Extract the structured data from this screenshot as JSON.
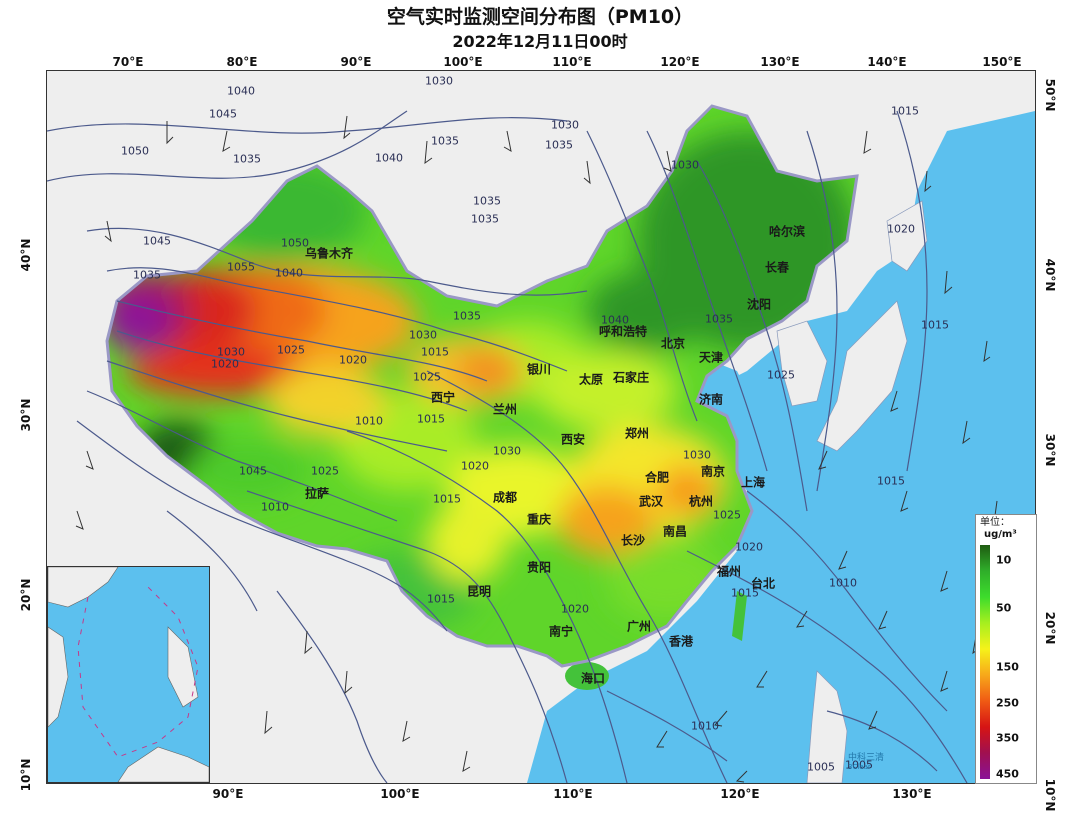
{
  "title": "空气实时监测空间分布图（PM10）",
  "subtitle": "2022年12月11日00时",
  "longitude_labels_top": [
    "70°E",
    "80°E",
    "90°E",
    "100°E",
    "110°E",
    "120°E",
    "130°E",
    "140°E",
    "150°E"
  ],
  "longitude_labels_bottom": [
    "90°E",
    "100°E",
    "110°E",
    "120°E",
    "130°E"
  ],
  "latitude_labels_left": [
    "40°N",
    "30°N",
    "20°N",
    "10°N"
  ],
  "latitude_labels_right": [
    "50°N",
    "40°N",
    "30°N",
    "20°N",
    "10°N"
  ],
  "cities": [
    {
      "name": "乌鲁木齐"
    },
    {
      "name": "哈尔滨"
    },
    {
      "name": "长春"
    },
    {
      "name": "沈阳"
    },
    {
      "name": "呼和浩特"
    },
    {
      "name": "北京"
    },
    {
      "name": "天津"
    },
    {
      "name": "银川"
    },
    {
      "name": "太原"
    },
    {
      "name": "石家庄"
    },
    {
      "name": "西宁"
    },
    {
      "name": "兰州"
    },
    {
      "name": "济南"
    },
    {
      "name": "西安"
    },
    {
      "name": "郑州"
    },
    {
      "name": "合肥"
    },
    {
      "name": "南京"
    },
    {
      "name": "上海"
    },
    {
      "name": "拉萨"
    },
    {
      "name": "成都"
    },
    {
      "name": "武汉"
    },
    {
      "name": "杭州"
    },
    {
      "name": "重庆"
    },
    {
      "name": "南昌"
    },
    {
      "name": "长沙"
    },
    {
      "name": "贵阳"
    },
    {
      "name": "福州"
    },
    {
      "name": "台北"
    },
    {
      "name": "昆明"
    },
    {
      "name": "南宁"
    },
    {
      "name": "广州"
    },
    {
      "name": "香港"
    },
    {
      "name": "海口"
    }
  ],
  "isobar_labels": [
    "1040",
    "1045",
    "1050",
    "1035",
    "1030",
    "1040",
    "1035",
    "1035",
    "1030",
    "1035",
    "1045",
    "1050",
    "1040",
    "1055",
    "1035",
    "1030",
    "1025",
    "1020",
    "1015",
    "1010",
    "1015",
    "1020",
    "1025",
    "1030",
    "1035",
    "1040",
    "1045",
    "1030",
    "1025",
    "1020",
    "1015",
    "1010",
    "1005",
    "1005",
    "1010",
    "1015",
    "1020",
    "1025",
    "1030",
    "1035",
    "1015",
    "1020",
    "1015",
    "1010",
    "1015",
    "1020",
    "1015",
    "1025",
    "1030",
    "1035"
  ],
  "legend": {
    "title": "单位：",
    "unit": "ug/m³",
    "ticks": [
      "10",
      "50",
      "150",
      "250",
      "350",
      "450"
    ],
    "colors": [
      "#1f5c12",
      "#2fae2a",
      "#3ddc2c",
      "#a6ef1f",
      "#f6f21a",
      "#f7a81a",
      "#f05a14",
      "#d61414",
      "#a01050",
      "#8a1298"
    ]
  },
  "logo": {
    "name": "中科三清",
    "sub": "3Clear"
  },
  "colors": {
    "sea": "#5cc0ee",
    "land_outside": "#eeeeee",
    "isobar": "#4c5a8c"
  }
}
